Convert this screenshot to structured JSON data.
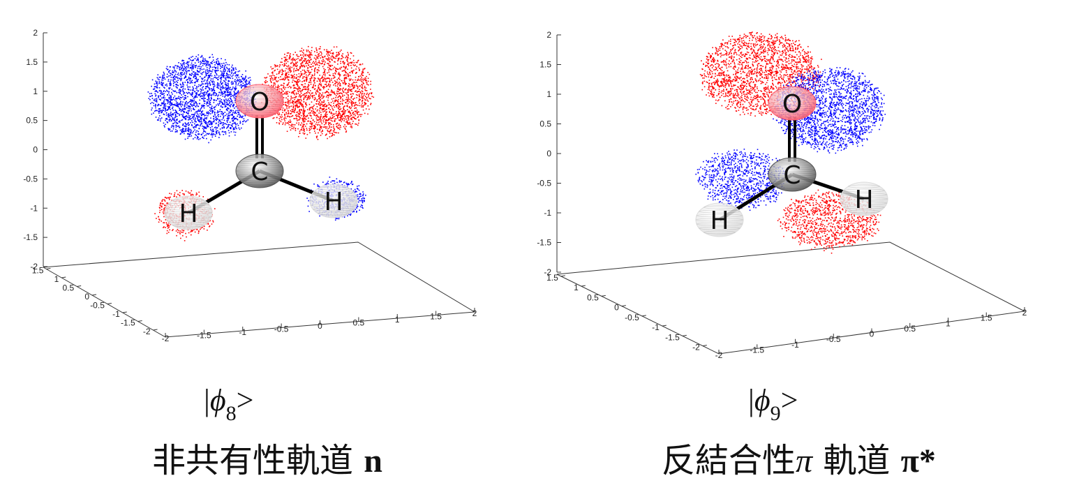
{
  "panels": [
    {
      "ket_prefix": "|",
      "ket_symbol": "ϕ",
      "ket_subscript": "8",
      "ket_suffix": ">",
      "caption_main": "非共有性軌道",
      "caption_greek": "",
      "caption_post": "",
      "caption_symbol": "n",
      "z_ticks": [
        "2",
        "1.5",
        "1",
        "0.5",
        "0",
        "-0.5",
        "-1",
        "-1.5",
        "-2"
      ],
      "y_ticks": [
        "1.5",
        "1",
        "0.5",
        "0",
        "-0.5",
        "-1",
        "-1.5",
        "-2"
      ],
      "x_ticks": [
        "-2",
        "-1.5",
        "-1",
        "-0.5",
        "0",
        "0.5",
        "1",
        "1.5",
        "2"
      ],
      "atoms": [
        "O",
        "C",
        "H",
        "H"
      ],
      "colors": {
        "positive": "#ff0000",
        "negative": "#0000ff",
        "oxygen": "#ff6070",
        "carbon": "#555555",
        "hydrogen": "#dddddd"
      }
    },
    {
      "ket_prefix": "|",
      "ket_symbol": "ϕ",
      "ket_subscript": "9",
      "ket_suffix": ">",
      "caption_main": "反結合性",
      "caption_greek": "π",
      "caption_post": "軌道",
      "caption_symbol": "π*",
      "z_ticks": [
        "2",
        "1.5",
        "1",
        "0.5",
        "0",
        "-0.5",
        "-1",
        "-1.5",
        "-2"
      ],
      "y_ticks": [
        "1.5",
        "1",
        "0.5",
        "0",
        "-0.5",
        "-1",
        "-1.5",
        "-2"
      ],
      "x_ticks": [
        "-2",
        "-1.5",
        "-1",
        "-0.5",
        "0",
        "0.5",
        "1",
        "1.5",
        "2"
      ],
      "atoms": [
        "O",
        "C",
        "H",
        "H"
      ],
      "colors": {
        "positive": "#ff0000",
        "negative": "#0000ff",
        "oxygen": "#ff6070",
        "carbon": "#555555",
        "hydrogen": "#dddddd"
      }
    }
  ]
}
